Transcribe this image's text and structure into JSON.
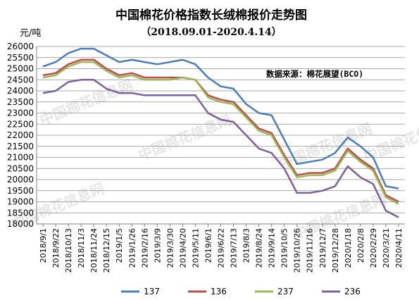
{
  "chart_data": {
    "type": "line",
    "title": "中国棉花价格指数长绒棉报价走势图",
    "subtitle": "（2018.09.01-2020.4.14）",
    "ylabel": "元/吨",
    "source_note": "数据来源：棉花展望(BCO)",
    "watermark_text": "中国棉花信息网",
    "watermark_url": "cottonchina.org.cn",
    "ylim": [
      18000,
      26000
    ],
    "yticks": [
      18000,
      18500,
      19000,
      19500,
      20000,
      20500,
      21000,
      21500,
      22000,
      22500,
      23000,
      23500,
      24000,
      24500,
      25000,
      25500,
      26000
    ],
    "grid": "horizontal",
    "legend_position": "bottom",
    "categories": [
      "2018/9/1",
      "2018/9/22",
      "2018/10/13",
      "2018/11/3",
      "2018/11/24",
      "2018/12/15",
      "2019/1/5",
      "2019/1/26",
      "2019/2/16",
      "2019/3/9",
      "2019/3/30",
      "2019/4/20",
      "2019/5/11",
      "2019/6/1",
      "2019/6/22",
      "2019/7/13",
      "2019/8/3",
      "2019/8/24",
      "2019/9/14",
      "2019/10/5",
      "2019/10/26",
      "2019/11/16",
      "2019/12/7",
      "2019/12/28",
      "2020/1/18",
      "2020/2/8",
      "2020/2/29",
      "2020/3/21",
      "2020/4/11"
    ],
    "series": [
      {
        "name": "137",
        "color": "#4a7ebb",
        "values": [
          25100,
          25300,
          25700,
          25900,
          25900,
          25600,
          25300,
          25400,
          25300,
          25200,
          25300,
          25400,
          25200,
          24600,
          24200,
          24100,
          23400,
          23000,
          22900,
          21800,
          20700,
          20800,
          20900,
          21200,
          21900,
          21500,
          21000,
          19700,
          19600
        ]
      },
      {
        "name": "136",
        "color": "#be4b48",
        "values": [
          24700,
          24800,
          25200,
          25400,
          25400,
          25000,
          24700,
          24800,
          24600,
          24600,
          24600,
          24600,
          24500,
          23800,
          23600,
          23500,
          22900,
          22300,
          22100,
          21100,
          20200,
          20300,
          20300,
          20500,
          21400,
          20900,
          20500,
          19300,
          19000
        ]
      },
      {
        "name": "237",
        "color": "#98b954",
        "values": [
          24600,
          24700,
          25100,
          25300,
          25300,
          24900,
          24600,
          24700,
          24500,
          24500,
          24500,
          24600,
          24500,
          23700,
          23500,
          23400,
          22800,
          22200,
          22000,
          21000,
          20100,
          20200,
          20200,
          20400,
          21300,
          20800,
          20400,
          19200,
          18900
        ]
      },
      {
        "name": "236",
        "color": "#7d60a0",
        "values": [
          23900,
          24000,
          24400,
          24500,
          24500,
          24100,
          23900,
          23900,
          23800,
          23800,
          23800,
          23800,
          23800,
          23000,
          22700,
          22600,
          22000,
          21400,
          21200,
          20500,
          19400,
          19400,
          19500,
          19700,
          20600,
          20100,
          19800,
          18600,
          18300
        ]
      }
    ]
  }
}
